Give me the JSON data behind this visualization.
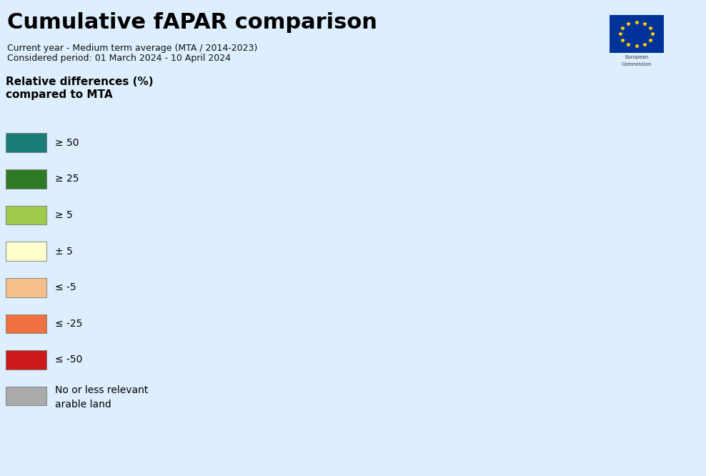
{
  "title": "Cumulative fAPAR comparison",
  "subtitle_line1": "Current year - Medium term average (MTA / 2014-2023)",
  "subtitle_line2": "Considered period: 01 March 2024 - 10 April 2024",
  "legend_title": "Relative differences (%)\ncompared to MTA",
  "legend_items": [
    {
      "label": "≥ 50",
      "color": "#1a7d78"
    },
    {
      "label": "≥ 25",
      "color": "#2d7a27"
    },
    {
      "label": "≥ 5",
      "color": "#9fcb4d"
    },
    {
      "label": "± 5",
      "color": "#ffffcc"
    },
    {
      "label": "≤ -5",
      "color": "#f5c08a"
    },
    {
      "label": "≤ -25",
      "color": "#f07040"
    },
    {
      "label": "≤ -50",
      "color": "#cc1a1a"
    },
    {
      "label": "No or less relevant\narable land",
      "color": "#aaaaaa"
    }
  ],
  "background_color": "#ddeeff",
  "ocean_color": "#c8e4f0",
  "land_color": "#b0b0b0",
  "border_color": "#555555",
  "title_fontsize": 22,
  "subtitle_fontsize": 9,
  "legend_title_fontsize": 11,
  "legend_label_fontsize": 10,
  "map_extent_lon": [
    -25,
    45
  ],
  "map_extent_lat": [
    34,
    72
  ]
}
